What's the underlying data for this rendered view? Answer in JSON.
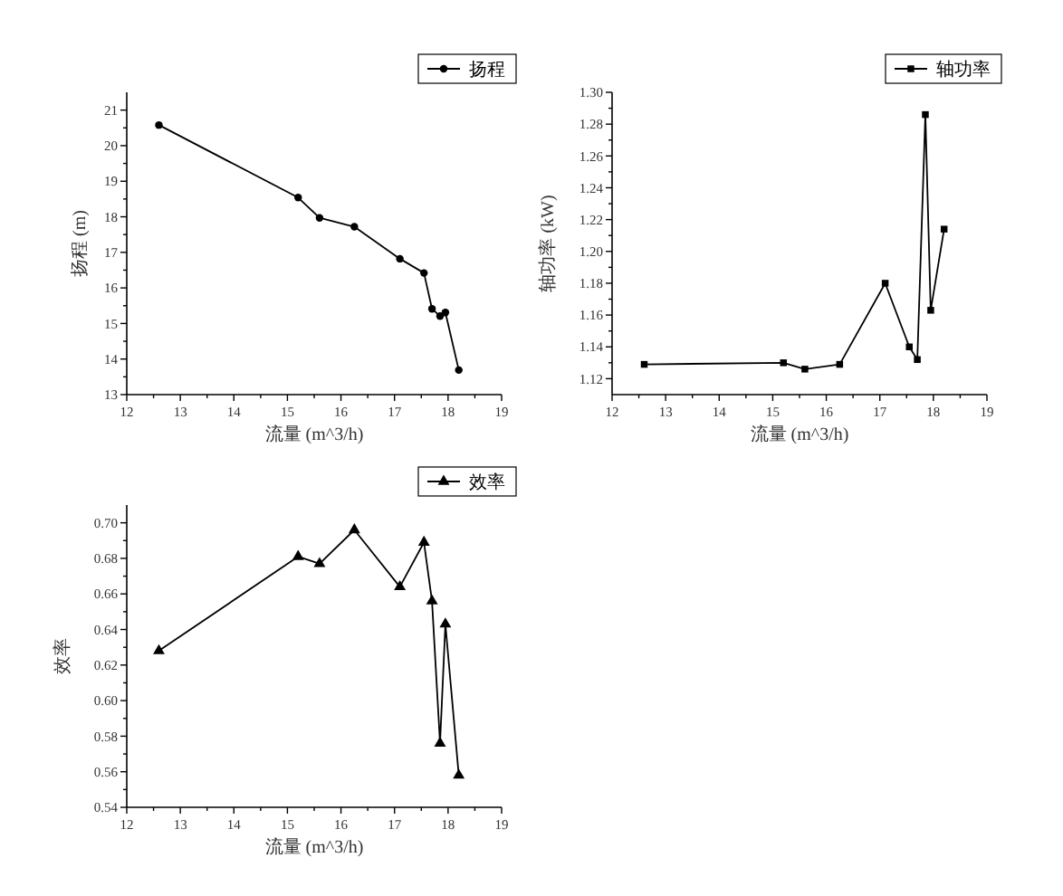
{
  "chart_data": [
    {
      "type": "line",
      "x": [
        12.6,
        15.2,
        15.6,
        16.25,
        17.1,
        17.55,
        17.7,
        17.85,
        17.95,
        18.2
      ],
      "series": [
        {
          "name": "扬程",
          "color": "#000000",
          "values": [
            20.58,
            18.54,
            17.97,
            17.72,
            16.82,
            16.42,
            15.41,
            15.21,
            15.31,
            13.69
          ]
        }
      ],
      "xlabel": "流量 (m^3/h)",
      "ylabel": "扬程 (m)",
      "xlim": [
        12,
        19
      ],
      "ylim": [
        13,
        21.5
      ],
      "xticks": [
        12,
        {
          "value": 12.5,
          "label": null
        },
        13,
        {
          "value": 13.5,
          "label": null
        },
        14,
        {
          "value": 14.5,
          "label": null
        },
        15,
        {
          "value": 15.5,
          "label": null
        },
        16,
        {
          "value": 16.5,
          "label": null
        },
        17,
        {
          "value": 17.5,
          "label": null
        },
        18,
        {
          "value": 18.5,
          "label": null
        },
        19
      ],
      "yticks": [
        13,
        {
          "value": 13.5,
          "label": null
        },
        14,
        {
          "value": 14.5,
          "label": null
        },
        15,
        {
          "value": 15.5,
          "label": null
        },
        16,
        {
          "value": 16.5,
          "label": null
        },
        17,
        {
          "value": 17.5,
          "label": null
        },
        18,
        {
          "value": 18.5,
          "label": null
        },
        19,
        {
          "value": 19.5,
          "label": null
        },
        20,
        {
          "value": 20.5,
          "label": null
        },
        21
      ],
      "legend": "top right",
      "marker": "circle"
    },
    {
      "type": "line",
      "x": [
        12.6,
        15.2,
        15.6,
        16.25,
        17.1,
        17.55,
        17.7,
        17.85,
        17.95,
        18.2
      ],
      "series": [
        {
          "name": "轴功率",
          "color": "#000000",
          "values": [
            1.129,
            1.13,
            1.126,
            1.129,
            1.18,
            1.14,
            1.132,
            1.286,
            1.163,
            1.214
          ]
        }
      ],
      "xlabel": "流量 (m^3/h)",
      "ylabel": "轴功率 (kW)",
      "xlim": [
        12,
        19
      ],
      "ylim": [
        1.11,
        1.3
      ],
      "xticks": [
        12,
        {
          "value": 12.5,
          "label": null
        },
        13,
        {
          "value": 13.5,
          "label": null
        },
        14,
        {
          "value": 14.5,
          "label": null
        },
        15,
        {
          "value": 15.5,
          "label": null
        },
        16,
        {
          "value": 16.5,
          "label": null
        },
        17,
        {
          "value": 17.5,
          "label": null
        },
        18,
        {
          "value": 18.5,
          "label": null
        },
        19
      ],
      "yticks": [
        1.12,
        {
          "value": 1.13,
          "label": null
        },
        1.14,
        {
          "value": 1.15,
          "label": null
        },
        1.16,
        {
          "value": 1.17,
          "label": null
        },
        1.18,
        {
          "value": 1.19,
          "label": null
        },
        {
          "value": 1.2,
          "label": "1.20"
        },
        {
          "value": 1.21,
          "label": null
        },
        1.22,
        {
          "value": 1.23,
          "label": null
        },
        1.24,
        {
          "value": 1.25,
          "label": null
        },
        1.26,
        {
          "value": 1.27,
          "label": null
        },
        1.28,
        {
          "value": 1.29,
          "label": null
        },
        {
          "value": 1.3,
          "label": "1.30"
        }
      ],
      "legend": "top right",
      "marker": "square"
    },
    {
      "type": "line",
      "x": [
        12.6,
        15.2,
        15.6,
        16.25,
        17.1,
        17.55,
        17.7,
        17.85,
        17.95,
        18.2
      ],
      "series": [
        {
          "name": "效率",
          "color": "#000000",
          "values": [
            0.628,
            0.681,
            0.677,
            0.696,
            0.664,
            0.689,
            0.656,
            0.576,
            0.643,
            0.558
          ]
        }
      ],
      "xlabel": "流量 (m^3/h)",
      "ylabel": "效率",
      "xlim": [
        12,
        19
      ],
      "ylim": [
        0.54,
        0.71
      ],
      "xticks": [
        12,
        {
          "value": 12.5,
          "label": null
        },
        13,
        {
          "value": 13.5,
          "label": null
        },
        14,
        {
          "value": 14.5,
          "label": null
        },
        15,
        {
          "value": 15.5,
          "label": null
        },
        16,
        {
          "value": 16.5,
          "label": null
        },
        17,
        {
          "value": 17.5,
          "label": null
        },
        18,
        {
          "value": 18.5,
          "label": null
        },
        19
      ],
      "yticks": [
        0.54,
        {
          "value": 0.55,
          "label": null
        },
        0.56,
        {
          "value": 0.57,
          "label": null
        },
        0.58,
        {
          "value": 0.59,
          "label": null
        },
        {
          "value": 0.6,
          "label": "0.60"
        },
        {
          "value": 0.61,
          "label": null
        },
        0.62,
        {
          "value": 0.63,
          "label": null
        },
        0.64,
        {
          "value": 0.65,
          "label": null
        },
        0.66,
        {
          "value": 0.67,
          "label": null
        },
        0.68,
        {
          "value": 0.69,
          "label": null
        },
        {
          "value": 0.7,
          "label": "0.70"
        }
      ],
      "legend": "top right",
      "marker": "triangle"
    }
  ]
}
